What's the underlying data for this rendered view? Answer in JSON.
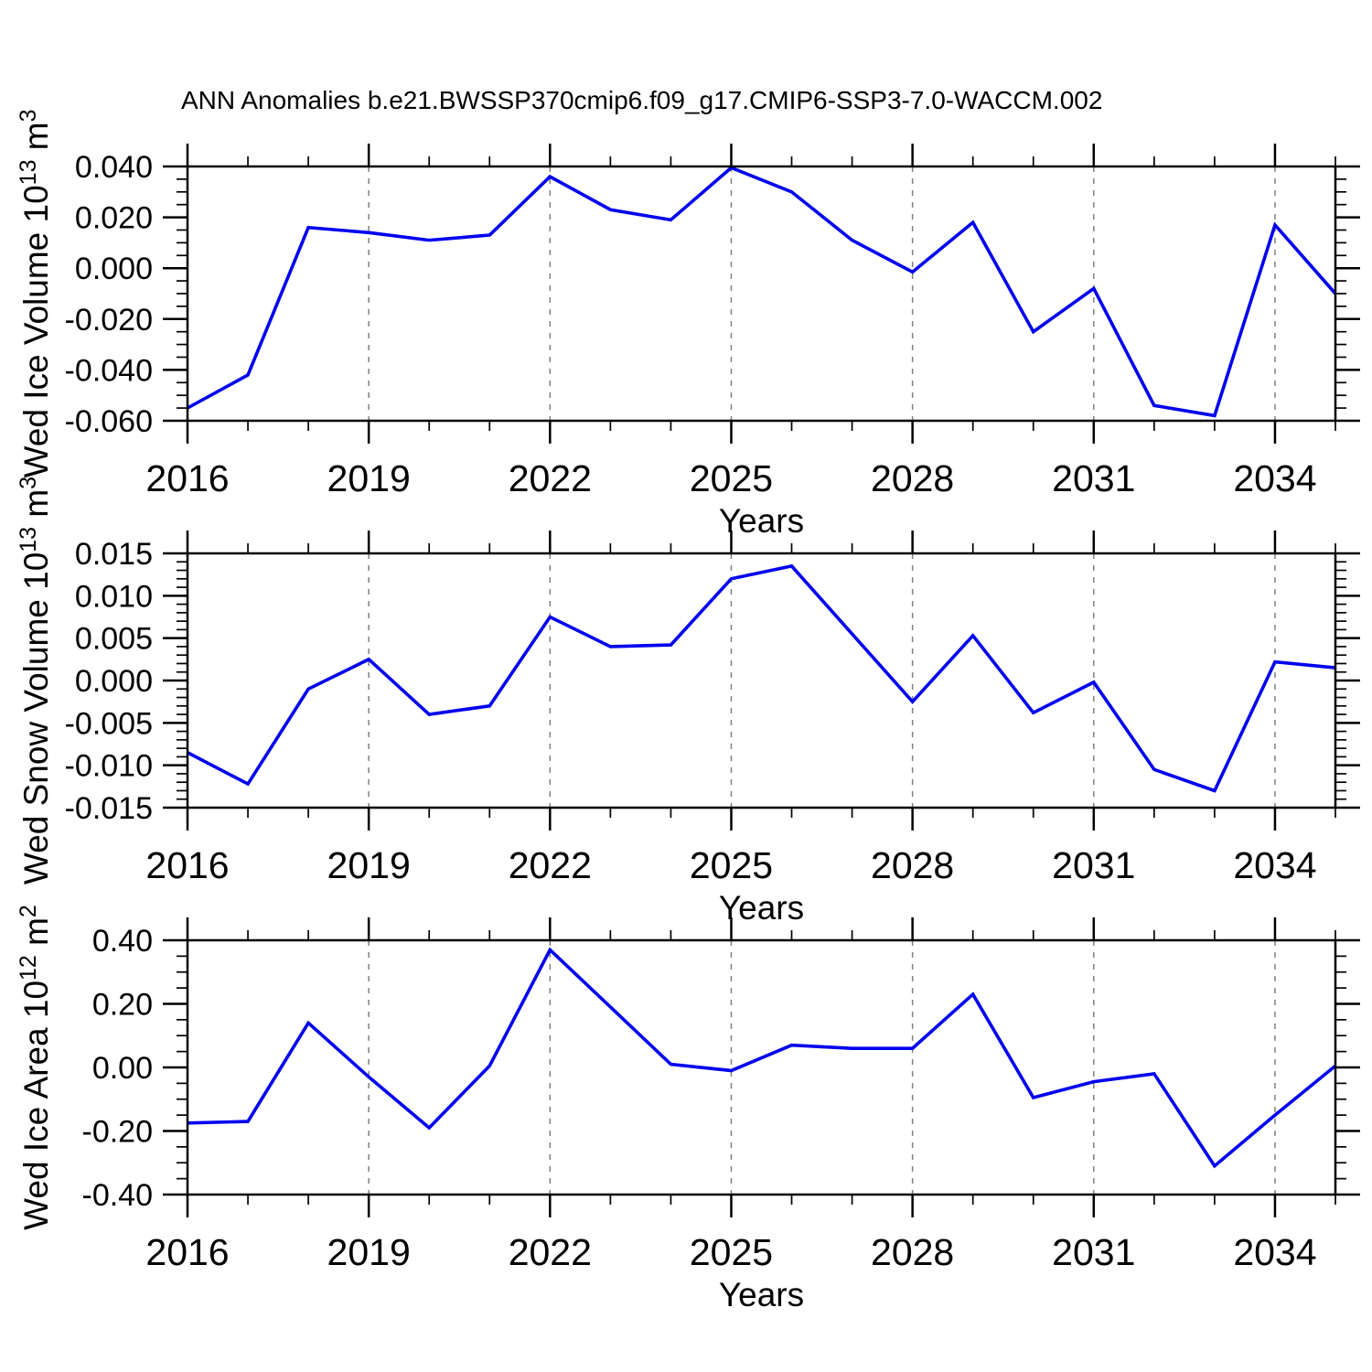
{
  "title": "ANN Anomalies b.e21.BWSSP370cmip6.f09_g17.CMIP6-SSP3-7.0-WACCM.002",
  "colors": {
    "line": "#0000ee",
    "grid": "#808080",
    "axis": "#000000",
    "background": "#ffffff"
  },
  "x_axis": {
    "label": "Years",
    "start": 2016,
    "end": 2035,
    "minor_step": 1,
    "major_tick_years": [
      2016,
      2019,
      2022,
      2025,
      2028,
      2031,
      2034
    ],
    "major_tick_labels": [
      "2016",
      "2019",
      "2022",
      "2025",
      "2028",
      "2031",
      "2034"
    ],
    "grid_years": [
      2019,
      2022,
      2025,
      2028,
      2031,
      2034
    ]
  },
  "chart_data": [
    {
      "type": "line",
      "name": "wed-ice-volume",
      "ylabel": "Wed Ice Volume 10^13 m^3",
      "ylabel_segments": [
        {
          "text": "Wed Ice Volume 10"
        },
        {
          "text": "13",
          "super": true
        },
        {
          "text": " m"
        },
        {
          "text": "3",
          "super": true
        }
      ],
      "xlabel": "Years",
      "ylim": [
        -0.06,
        0.04
      ],
      "ytick_values": [
        0.04,
        0.02,
        0.0,
        -0.02,
        -0.04,
        -0.06
      ],
      "ytick_labels": [
        "0.040",
        "0.020",
        "0.000",
        "-0.020",
        "-0.040",
        "-0.060"
      ],
      "y_minor_step": 0.005,
      "x": [
        2016,
        2017,
        2018,
        2019,
        2020,
        2021,
        2022,
        2023,
        2024,
        2025,
        2026,
        2027,
        2028,
        2029,
        2030,
        2031,
        2032,
        2033,
        2034,
        2035
      ],
      "values": [
        -0.055,
        -0.042,
        0.016,
        0.014,
        0.011,
        0.013,
        0.036,
        0.023,
        0.019,
        0.0395,
        0.03,
        0.011,
        -0.0015,
        0.018,
        -0.025,
        -0.008,
        -0.054,
        -0.058,
        0.017,
        -0.01
      ]
    },
    {
      "type": "line",
      "name": "wed-snow-volume",
      "ylabel": "Wed Snow Volume 10^13 m^3",
      "ylabel_segments": [
        {
          "text": "Wed Snow Volume 10"
        },
        {
          "text": "13",
          "super": true
        },
        {
          "text": " m"
        },
        {
          "text": "3",
          "super": true
        }
      ],
      "xlabel": "Years",
      "ylim": [
        -0.015,
        0.015
      ],
      "ytick_values": [
        0.015,
        0.01,
        0.005,
        0.0,
        -0.005,
        -0.01,
        -0.015
      ],
      "ytick_labels": [
        "0.015",
        "0.010",
        "0.005",
        "0.000",
        "-0.005",
        "-0.010",
        "-0.015"
      ],
      "y_minor_step": 0.001,
      "x": [
        2016,
        2017,
        2018,
        2019,
        2020,
        2021,
        2022,
        2023,
        2024,
        2025,
        2026,
        2027,
        2028,
        2029,
        2030,
        2031,
        2032,
        2033,
        2034,
        2035
      ],
      "values": [
        -0.0085,
        -0.0122,
        -0.001,
        0.0025,
        -0.004,
        -0.003,
        0.0075,
        0.004,
        0.0042,
        0.012,
        0.0135,
        0.0055,
        -0.0025,
        0.0053,
        -0.0038,
        -0.0002,
        -0.0105,
        -0.013,
        0.0022,
        0.0015
      ]
    },
    {
      "type": "line",
      "name": "wed-ice-area",
      "ylabel": "Wed Ice Area 10^12 m^2",
      "ylabel_segments": [
        {
          "text": "Wed Ice Area 10"
        },
        {
          "text": "12",
          "super": true
        },
        {
          "text": " m"
        },
        {
          "text": "2",
          "super": true
        }
      ],
      "xlabel": "Years",
      "ylim": [
        -0.4,
        0.4
      ],
      "ytick_values": [
        0.4,
        0.2,
        0.0,
        -0.2,
        -0.4
      ],
      "ytick_labels": [
        "0.40",
        "0.20",
        "0.00",
        "-0.20",
        "-0.40"
      ],
      "y_minor_step": 0.05,
      "x": [
        2016,
        2017,
        2018,
        2019,
        2020,
        2021,
        2022,
        2023,
        2024,
        2025,
        2026,
        2027,
        2028,
        2029,
        2030,
        2031,
        2032,
        2033,
        2034,
        2035
      ],
      "values": [
        -0.175,
        -0.17,
        0.14,
        -0.03,
        -0.19,
        0.005,
        0.37,
        0.19,
        0.01,
        -0.01,
        0.07,
        0.06,
        0.06,
        0.23,
        -0.095,
        -0.045,
        -0.02,
        -0.31,
        -0.15,
        0.005
      ]
    }
  ]
}
